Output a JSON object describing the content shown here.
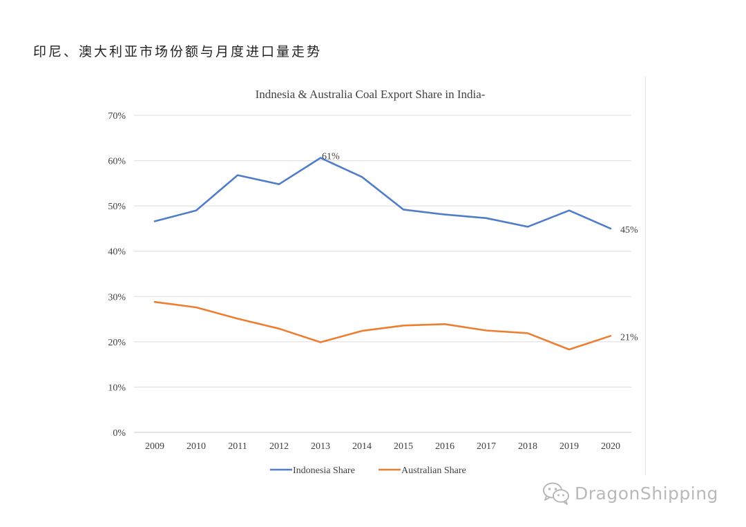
{
  "page": {
    "heading": "印尼、澳大利亚市场份额与月度进口量走势",
    "watermark": {
      "icon": "wechat-icon",
      "text": "DragonShipping"
    }
  },
  "chart_data": {
    "type": "line",
    "title": "Indnesia & Australia Coal Export Share in India-",
    "xlabel": "",
    "ylabel": "",
    "categories": [
      "2009",
      "2010",
      "2011",
      "2012",
      "2013",
      "2014",
      "2015",
      "2016",
      "2017",
      "2018",
      "2019",
      "2020"
    ],
    "ylim": [
      0,
      70
    ],
    "yticks": [
      0,
      10,
      20,
      30,
      40,
      50,
      60,
      70
    ],
    "ytick_labels": [
      "0%",
      "10%",
      "20%",
      "30%",
      "40%",
      "50%",
      "60%",
      "70%"
    ],
    "grid": true,
    "legend_position": "bottom",
    "series": [
      {
        "name": "Indonesia Share",
        "color": "#4f7dc9",
        "values": [
          46.6,
          49.0,
          56.8,
          54.8,
          60.6,
          56.4,
          49.2,
          48.1,
          47.3,
          45.4,
          49.0,
          45.0
        ]
      },
      {
        "name": "Australian Share",
        "color": "#ed7d31",
        "values": [
          28.8,
          27.6,
          25.1,
          22.9,
          19.9,
          22.4,
          23.6,
          23.9,
          22.5,
          21.9,
          18.3,
          21.3
        ]
      }
    ],
    "annotations": [
      {
        "series": 0,
        "index": 4,
        "text": "61%"
      },
      {
        "series": 0,
        "index": 11,
        "text": "45%"
      },
      {
        "series": 1,
        "index": 11,
        "text": "21%"
      }
    ]
  }
}
